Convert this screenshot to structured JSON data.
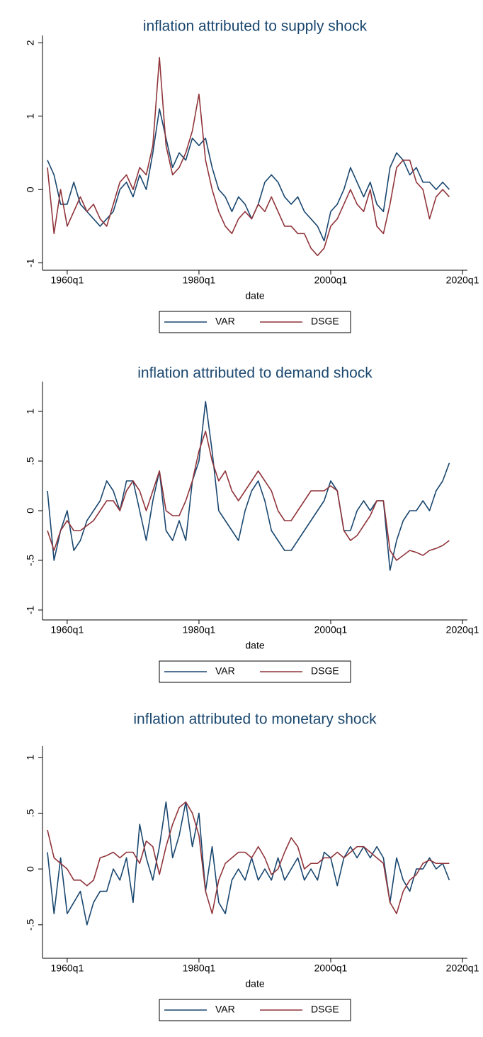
{
  "chart_data": [
    {
      "type": "line",
      "title": "inflation attributed to supply shock",
      "xlabel": "date",
      "x": [
        "1957q1",
        "1958q1",
        "1959q1",
        "1960q1",
        "1961q1",
        "1962q1",
        "1963q1",
        "1964q1",
        "1965q1",
        "1966q1",
        "1967q1",
        "1968q1",
        "1969q1",
        "1970q1",
        "1971q1",
        "1972q1",
        "1973q1",
        "1974q1",
        "1975q1",
        "1976q1",
        "1977q1",
        "1978q1",
        "1979q1",
        "1980q1",
        "1981q1",
        "1982q1",
        "1983q1",
        "1984q1",
        "1985q1",
        "1986q1",
        "1987q1",
        "1988q1",
        "1989q1",
        "1990q1",
        "1991q1",
        "1992q1",
        "1993q1",
        "1994q1",
        "1995q1",
        "1996q1",
        "1997q1",
        "1998q1",
        "1999q1",
        "2000q1",
        "2001q1",
        "2002q1",
        "2003q1",
        "2004q1",
        "2005q1",
        "2006q1",
        "2007q1",
        "2008q1",
        "2009q1",
        "2010q1",
        "2011q1",
        "2012q1",
        "2013q1",
        "2014q1",
        "2015q1",
        "2016q1",
        "2017q1",
        "2018q1"
      ],
      "series": [
        {
          "name": "VAR",
          "color": "#1a476f",
          "values": [
            0.4,
            0.2,
            -0.2,
            -0.2,
            0.1,
            -0.2,
            -0.3,
            -0.4,
            -0.5,
            -0.4,
            -0.3,
            0.0,
            0.1,
            -0.1,
            0.2,
            0.0,
            0.5,
            1.1,
            0.7,
            0.3,
            0.5,
            0.4,
            0.7,
            0.6,
            0.7,
            0.3,
            0.0,
            -0.1,
            -0.3,
            -0.1,
            -0.2,
            -0.4,
            -0.2,
            0.1,
            0.2,
            0.1,
            -0.1,
            -0.2,
            -0.1,
            -0.3,
            -0.4,
            -0.5,
            -0.7,
            -0.3,
            -0.2,
            0.0,
            0.3,
            0.1,
            -0.1,
            0.1,
            -0.2,
            -0.3,
            0.3,
            0.5,
            0.4,
            0.2,
            0.3,
            0.1,
            0.1,
            0.0,
            0.1,
            0.0
          ]
        },
        {
          "name": "DSGE",
          "color": "#90353b",
          "values": [
            0.3,
            -0.6,
            0.0,
            -0.5,
            -0.3,
            -0.1,
            -0.3,
            -0.2,
            -0.4,
            -0.5,
            -0.2,
            0.1,
            0.2,
            0.0,
            0.3,
            0.2,
            0.6,
            1.8,
            0.6,
            0.2,
            0.3,
            0.5,
            0.8,
            1.3,
            0.4,
            0.0,
            -0.3,
            -0.5,
            -0.6,
            -0.4,
            -0.3,
            -0.4,
            -0.2,
            -0.3,
            -0.1,
            -0.3,
            -0.5,
            -0.5,
            -0.6,
            -0.6,
            -0.8,
            -0.9,
            -0.8,
            -0.5,
            -0.4,
            -0.2,
            0.0,
            -0.2,
            -0.3,
            0.0,
            -0.5,
            -0.6,
            -0.2,
            0.3,
            0.4,
            0.4,
            0.1,
            0.0,
            -0.4,
            -0.1,
            0.0,
            -0.1
          ]
        }
      ],
      "xlim": [
        "1956q2",
        "2020q4"
      ],
      "xticks": [
        "1960q1",
        "1980q1",
        "2000q1",
        "2020q1"
      ],
      "ylim": [
        -1.1,
        2.1
      ],
      "yticks": [
        -1,
        0,
        1,
        2
      ],
      "grid": false
    },
    {
      "type": "line",
      "title": "inflation attributed to demand shock",
      "xlabel": "date",
      "x": [
        "1957q1",
        "1958q1",
        "1959q1",
        "1960q1",
        "1961q1",
        "1962q1",
        "1963q1",
        "1964q1",
        "1965q1",
        "1966q1",
        "1967q1",
        "1968q1",
        "1969q1",
        "1970q1",
        "1971q1",
        "1972q1",
        "1973q1",
        "1974q1",
        "1975q1",
        "1976q1",
        "1977q1",
        "1978q1",
        "1979q1",
        "1980q1",
        "1981q1",
        "1982q1",
        "1983q1",
        "1984q1",
        "1985q1",
        "1986q1",
        "1987q1",
        "1988q1",
        "1989q1",
        "1990q1",
        "1991q1",
        "1992q1",
        "1993q1",
        "1994q1",
        "1995q1",
        "1996q1",
        "1997q1",
        "1998q1",
        "1999q1",
        "2000q1",
        "2001q1",
        "2002q1",
        "2003q1",
        "2004q1",
        "2005q1",
        "2006q1",
        "2007q1",
        "2008q1",
        "2009q1",
        "2010q1",
        "2011q1",
        "2012q1",
        "2013q1",
        "2014q1",
        "2015q1",
        "2016q1",
        "2017q1",
        "2018q1"
      ],
      "series": [
        {
          "name": "VAR",
          "color": "#1a476f",
          "values": [
            0.2,
            -0.5,
            -0.2,
            0.0,
            -0.4,
            -0.3,
            -0.1,
            0.0,
            0.1,
            0.3,
            0.2,
            0.0,
            0.3,
            0.3,
            0.0,
            -0.3,
            0.1,
            0.4,
            -0.2,
            -0.3,
            -0.1,
            -0.3,
            0.3,
            0.5,
            1.1,
            0.6,
            0.0,
            -0.1,
            -0.2,
            -0.3,
            0.0,
            0.2,
            0.3,
            0.1,
            -0.2,
            -0.3,
            -0.4,
            -0.4,
            -0.3,
            -0.2,
            -0.1,
            0.0,
            0.1,
            0.3,
            0.2,
            -0.2,
            -0.2,
            0.0,
            0.1,
            0.0,
            0.1,
            0.1,
            -0.6,
            -0.3,
            -0.1,
            0.0,
            0.0,
            0.1,
            0.0,
            0.2,
            0.3,
            0.48
          ]
        },
        {
          "name": "DSGE",
          "color": "#90353b",
          "values": [
            -0.2,
            -0.4,
            -0.2,
            -0.1,
            -0.2,
            -0.2,
            -0.15,
            -0.1,
            0.0,
            0.1,
            0.1,
            0.0,
            0.2,
            0.3,
            0.2,
            0.0,
            0.2,
            0.4,
            0.0,
            -0.05,
            -0.05,
            0.1,
            0.3,
            0.6,
            0.8,
            0.5,
            0.3,
            0.4,
            0.2,
            0.1,
            0.2,
            0.3,
            0.4,
            0.3,
            0.2,
            0.0,
            -0.1,
            -0.1,
            0.0,
            0.1,
            0.2,
            0.2,
            0.2,
            0.25,
            0.2,
            -0.2,
            -0.3,
            -0.25,
            -0.15,
            -0.05,
            0.1,
            0.1,
            -0.4,
            -0.5,
            -0.45,
            -0.4,
            -0.42,
            -0.45,
            -0.4,
            -0.38,
            -0.35,
            -0.3
          ]
        }
      ],
      "xlim": [
        "1956q2",
        "2020q4"
      ],
      "xticks": [
        "1960q1",
        "1980q1",
        "2000q1",
        "2020q1"
      ],
      "ylim": [
        -1.1,
        1.3
      ],
      "yticks": [
        -1,
        {
          "value": -0.5,
          "label": "-.5"
        },
        0,
        {
          "value": 0.5,
          "label": ".5"
        },
        1
      ],
      "grid": false
    },
    {
      "type": "line",
      "title": "inflation attributed to monetary shock",
      "xlabel": "date",
      "x": [
        "1957q1",
        "1958q1",
        "1959q1",
        "1960q1",
        "1961q1",
        "1962q1",
        "1963q1",
        "1964q1",
        "1965q1",
        "1966q1",
        "1967q1",
        "1968q1",
        "1969q1",
        "1970q1",
        "1971q1",
        "1972q1",
        "1973q1",
        "1974q1",
        "1975q1",
        "1976q1",
        "1977q1",
        "1978q1",
        "1979q1",
        "1980q1",
        "1981q1",
        "1982q1",
        "1983q1",
        "1984q1",
        "1985q1",
        "1986q1",
        "1987q1",
        "1988q1",
        "1989q1",
        "1990q1",
        "1991q1",
        "1992q1",
        "1993q1",
        "1994q1",
        "1995q1",
        "1996q1",
        "1997q1",
        "1998q1",
        "1999q1",
        "2000q1",
        "2001q1",
        "2002q1",
        "2003q1",
        "2004q1",
        "2005q1",
        "2006q1",
        "2007q1",
        "2008q1",
        "2009q1",
        "2010q1",
        "2011q1",
        "2012q1",
        "2013q1",
        "2014q1",
        "2015q1",
        "2016q1",
        "2017q1",
        "2018q1"
      ],
      "series": [
        {
          "name": "VAR",
          "color": "#1a476f",
          "values": [
            0.15,
            -0.4,
            0.1,
            -0.4,
            -0.3,
            -0.2,
            -0.5,
            -0.3,
            -0.2,
            -0.2,
            0.0,
            -0.1,
            0.1,
            -0.3,
            0.4,
            0.1,
            -0.1,
            0.2,
            0.6,
            0.1,
            0.3,
            0.6,
            0.2,
            0.5,
            -0.2,
            0.2,
            -0.3,
            -0.4,
            -0.1,
            0.0,
            -0.1,
            0.1,
            -0.1,
            0.0,
            -0.1,
            0.1,
            -0.1,
            0.0,
            0.1,
            -0.1,
            0.0,
            -0.1,
            0.15,
            0.1,
            -0.15,
            0.1,
            0.2,
            0.1,
            0.2,
            0.1,
            0.2,
            0.1,
            -0.3,
            0.1,
            -0.1,
            -0.2,
            0.0,
            0.0,
            0.1,
            0.0,
            0.05,
            -0.1
          ]
        },
        {
          "name": "DSGE",
          "color": "#90353b",
          "values": [
            0.35,
            0.1,
            0.05,
            0.0,
            -0.1,
            -0.1,
            -0.15,
            -0.1,
            0.1,
            0.12,
            0.15,
            0.1,
            0.15,
            0.15,
            0.05,
            0.25,
            0.2,
            -0.05,
            0.2,
            0.4,
            0.55,
            0.6,
            0.5,
            0.3,
            -0.2,
            -0.4,
            -0.1,
            0.05,
            0.1,
            0.15,
            0.15,
            0.1,
            0.2,
            0.1,
            -0.05,
            0.0,
            0.15,
            0.28,
            0.2,
            0.0,
            0.05,
            0.05,
            0.1,
            0.1,
            0.15,
            0.1,
            0.15,
            0.2,
            0.2,
            0.15,
            0.1,
            0.05,
            -0.3,
            -0.4,
            -0.2,
            -0.1,
            -0.05,
            0.05,
            0.08,
            0.05,
            0.05,
            0.05
          ]
        }
      ],
      "xlim": [
        "1956q2",
        "2020q4"
      ],
      "xticks": [
        "1960q1",
        "1980q1",
        "2000q1",
        "2020q1"
      ],
      "ylim": [
        -0.8,
        1.1
      ],
      "yticks": [
        {
          "value": -0.5,
          "label": "-.5"
        },
        0,
        {
          "value": 0.5,
          "label": ".5"
        },
        1
      ],
      "grid": false
    }
  ]
}
